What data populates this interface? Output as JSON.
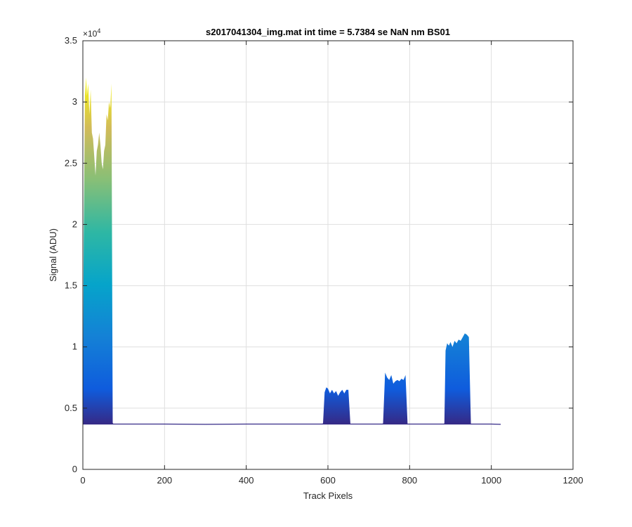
{
  "chart_data": {
    "type": "area",
    "title": "s2017041304_img.mat int time = 5.7384 se  NaN nm BS01",
    "xlabel": "Track Pixels",
    "ylabel": "Signal (ADU)",
    "xlim": [
      0,
      1200
    ],
    "ylim": [
      0,
      35000
    ],
    "x_ticks": [
      0,
      200,
      400,
      600,
      800,
      1000,
      1200
    ],
    "y_ticks": [
      0,
      5000,
      10000,
      15000,
      20000,
      25000,
      30000,
      35000
    ],
    "x_tick_labels": [
      "0",
      "200",
      "400",
      "600",
      "800",
      "1000",
      "1200"
    ],
    "y_tick_labels": [
      "0",
      "0.5",
      "1",
      "1.5",
      "2",
      "2.5",
      "3",
      "3.5"
    ],
    "y_exponent_label": "×10",
    "y_exponent_power": "4",
    "grid": true,
    "baseline": 3700,
    "series": [
      {
        "x": [
          0,
          2,
          5,
          8,
          10,
          13,
          16,
          19,
          22,
          25,
          28,
          31,
          34,
          37,
          40,
          43,
          46,
          49,
          52,
          55,
          58,
          61,
          64,
          67,
          70,
          73,
          75,
          78,
          100,
          200,
          300,
          400,
          500,
          580,
          588,
          592,
          596,
          600,
          605,
          610,
          615,
          620,
          625,
          630,
          635,
          640,
          645,
          650,
          655,
          660,
          730,
          735,
          740,
          745,
          750,
          755,
          760,
          765,
          770,
          775,
          780,
          785,
          790,
          795,
          800,
          805,
          880,
          885,
          888,
          892,
          896,
          900,
          905,
          910,
          915,
          920,
          925,
          930,
          935,
          940,
          945,
          950,
          955,
          1000,
          1023
        ],
        "values": [
          3700,
          19000,
          30500,
          32000,
          30500,
          31500,
          29000,
          31000,
          27500,
          27000,
          25500,
          24000,
          26000,
          26500,
          27500,
          26500,
          25000,
          24500,
          26000,
          26500,
          29000,
          28500,
          30000,
          29500,
          31500,
          3800,
          3700,
          3700,
          3700,
          3700,
          3680,
          3700,
          3700,
          3700,
          3750,
          6300,
          6700,
          6600,
          6200,
          6500,
          6200,
          6400,
          6000,
          6300,
          6500,
          6200,
          6500,
          6500,
          3700,
          3700,
          3700,
          3750,
          7900,
          7500,
          7300,
          7700,
          7000,
          7200,
          7300,
          7200,
          7400,
          7300,
          7700,
          3700,
          3700,
          3700,
          3700,
          3750,
          9700,
          10300,
          10100,
          10400,
          10000,
          10500,
          10300,
          10600,
          10500,
          10800,
          11100,
          11000,
          10800,
          3700,
          3700,
          3700,
          3680
        ]
      }
    ]
  }
}
